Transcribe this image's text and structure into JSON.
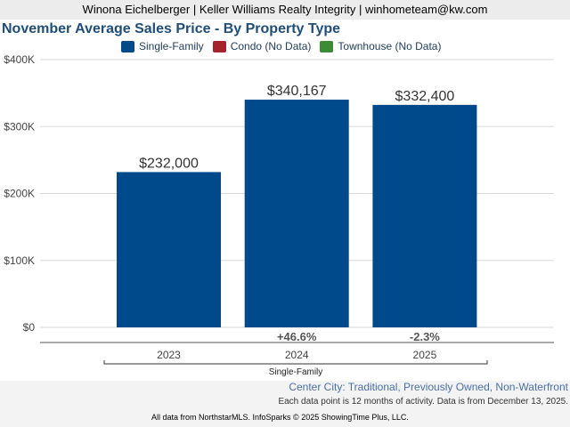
{
  "header": {
    "agent_line": "Winona Eichelberger | Keller Williams Realty Integrity | winhometeam@kw.com"
  },
  "chart_data": {
    "type": "bar",
    "title": "November Average Sales Price - By Property Type",
    "legend": [
      {
        "name": "Single-Family",
        "color": "#004a8c"
      },
      {
        "name": "Condo (No Data)",
        "color": "#a3242a"
      },
      {
        "name": "Townhouse (No Data)",
        "color": "#3d8b37"
      }
    ],
    "categories": [
      "2023",
      "2024",
      "2025"
    ],
    "series": [
      {
        "name": "Single-Family",
        "values": [
          232000,
          340167,
          332400
        ],
        "color": "#004a8c"
      }
    ],
    "data_labels": [
      "$232,000",
      "$340,167",
      "$332,400"
    ],
    "change_labels": [
      "",
      "+46.6%",
      "-2.3%"
    ],
    "ylim": [
      0,
      400000
    ],
    "yticks": [
      {
        "value": 0,
        "label": "$0"
      },
      {
        "value": 100000,
        "label": "$100K"
      },
      {
        "value": 200000,
        "label": "$200K"
      },
      {
        "value": 300000,
        "label": "$300K"
      },
      {
        "value": 400000,
        "label": "$400K"
      }
    ],
    "group_label": "Single-Family",
    "grid": true
  },
  "footer": {
    "region": "Center City: Traditional, Previously Owned, Non-Waterfront",
    "note": "Each data point is 12 months of activity. Data is from December 13, 2025.",
    "credit": "All data from NorthstarMLS. InfoSparks © 2025 ShowingTime Plus, LLC."
  }
}
